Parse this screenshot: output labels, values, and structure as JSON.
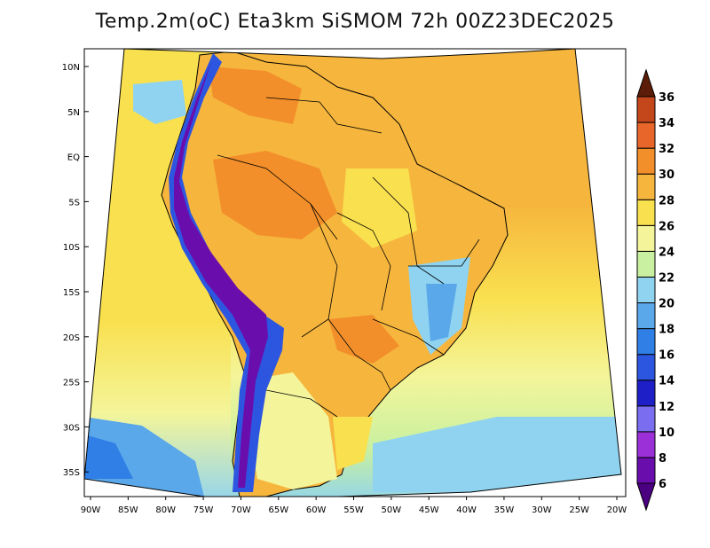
{
  "title": "Temp.2m(oC) Eta3km SiSMOM 72h 00Z23DEC2025",
  "map": {
    "lat_ticks": [
      "10N",
      "5N",
      "EQ",
      "5S",
      "10S",
      "15S",
      "20S",
      "25S",
      "30S",
      "35S"
    ],
    "lon_ticks": [
      "90W",
      "85W",
      "80W",
      "75W",
      "70W",
      "65W",
      "60W",
      "55W",
      "50W",
      "45W",
      "40W",
      "35W",
      "30W",
      "25W",
      "20W"
    ]
  },
  "colorbar": {
    "labels": [
      "6",
      "8",
      "10",
      "12",
      "14",
      "16",
      "18",
      "20",
      "22",
      "24",
      "26",
      "28",
      "30",
      "32",
      "34",
      "36"
    ],
    "colors": [
      "#6a0dad",
      "#9b30d9",
      "#7b6df0",
      "#1f1fc8",
      "#2d56e0",
      "#2f7fe6",
      "#5aa8ea",
      "#8fd3f0",
      "#c8f0a0",
      "#f4f59a",
      "#f9e04f",
      "#f6b63d",
      "#f28f2a",
      "#e8662a",
      "#c3471a",
      "#8b2a10"
    ],
    "low_color": "#4b0082",
    "high_color": "#5c1d08"
  },
  "legend_colors": {
    "ocean_warm": "#f6b63d",
    "ocean_mild": "#f9e04f",
    "ocean_cool": "#f4f59a",
    "ocean_cold": "#8fd3f0",
    "land_hot": "#f28f2a",
    "land_warm": "#f6b63d",
    "andes_cold": "#6a0dad",
    "andes_mid": "#2d56e0"
  }
}
